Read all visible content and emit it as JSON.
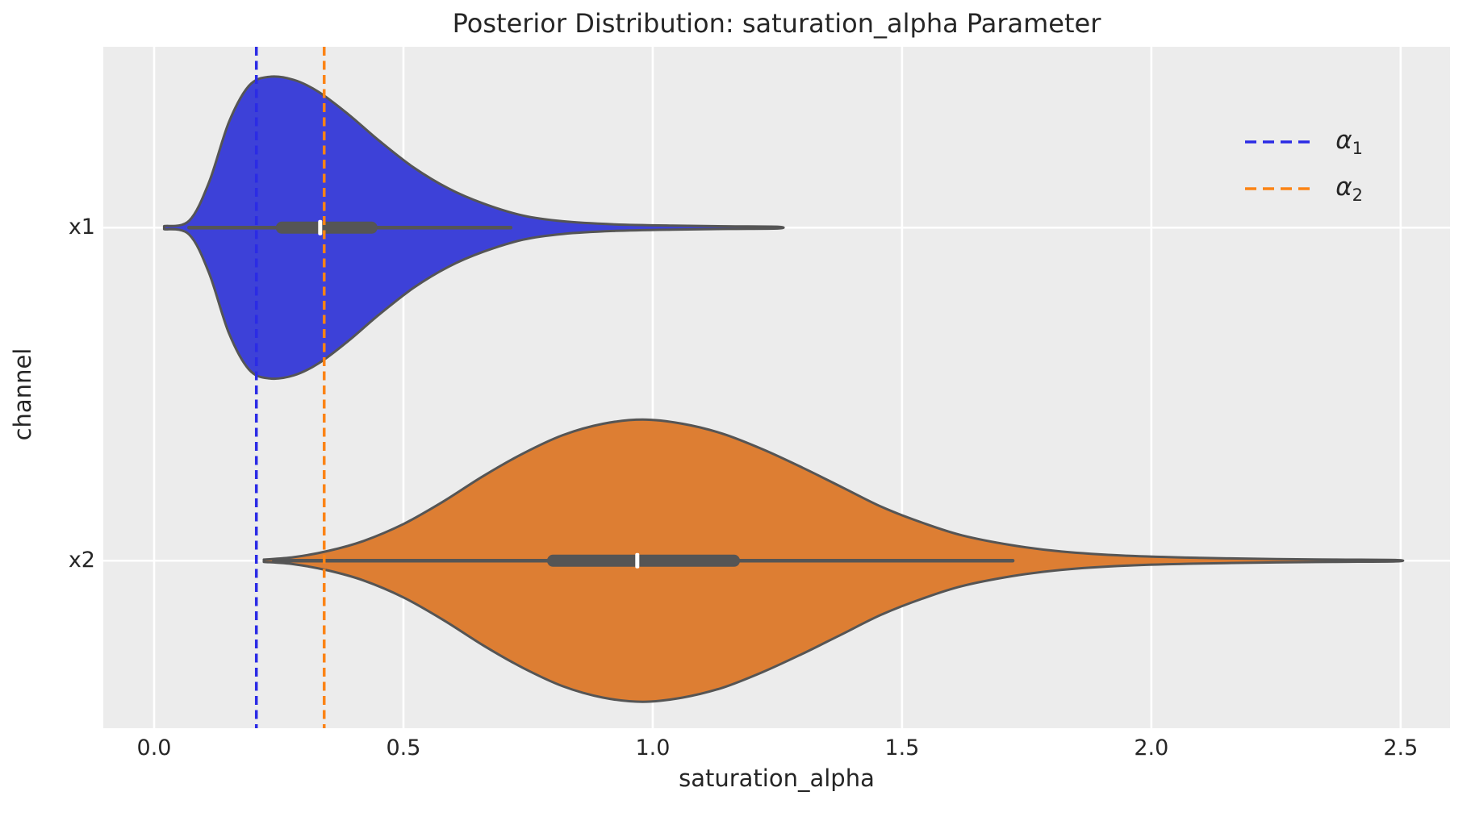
{
  "title": "Posterior Distribution: saturation_alpha Parameter",
  "colors": {
    "figure_bg": "#ffffff",
    "axes_bg": "#ececec",
    "grid": "#ffffff",
    "violin_edge": "#555555",
    "box": "#555555",
    "median_tick": "#ffffff",
    "text": "#262626",
    "violin1_fill": "#3d41d8",
    "violin2_fill": "#dd7e33",
    "alpha1_line": "#2b2be5",
    "alpha2_line": "#fb8315"
  },
  "legend": {
    "items": [
      {
        "name": "alpha_1",
        "base": "α",
        "sub": "1",
        "color": "#2b2be5"
      },
      {
        "name": "alpha_2",
        "base": "α",
        "sub": "2",
        "color": "#fb8315"
      }
    ]
  },
  "chart_data": {
    "type": "violin",
    "orientation": "horizontal",
    "title": "Posterior Distribution: saturation_alpha Parameter",
    "xlabel": "saturation_alpha",
    "ylabel": "channel",
    "x_axis": {
      "tick_values": [
        0.0,
        0.5,
        1.0,
        1.5,
        2.0,
        2.5
      ],
      "tick_labels": [
        "0.0",
        "0.5",
        "1.0",
        "1.5",
        "2.0",
        "2.5"
      ],
      "xlim": [
        -0.102,
        2.599
      ],
      "grid": true
    },
    "y_axis": {
      "categories": [
        "x1",
        "x2"
      ],
      "positions": [
        0,
        1
      ],
      "ylim": [
        -0.543,
        1.503
      ],
      "grid": true
    },
    "violins": [
      {
        "category": "x1",
        "fill": "#3d41d8",
        "max_halfwidth_units": 0.4527,
        "summary": {
          "median": 0.333,
          "q1": 0.244,
          "q3": 0.448,
          "whisker_low": 0.07,
          "whisker_high": 0.715,
          "min": 0.02,
          "max": 1.252
        },
        "density_profile": [
          [
            0.02,
            0.01
          ],
          [
            0.07,
            0.045
          ],
          [
            0.11,
            0.3
          ],
          [
            0.15,
            0.7
          ],
          [
            0.19,
            0.94
          ],
          [
            0.23,
            1.0
          ],
          [
            0.28,
            0.98
          ],
          [
            0.33,
            0.9
          ],
          [
            0.39,
            0.75
          ],
          [
            0.45,
            0.58
          ],
          [
            0.52,
            0.4
          ],
          [
            0.59,
            0.26
          ],
          [
            0.66,
            0.16
          ],
          [
            0.74,
            0.08
          ],
          [
            0.82,
            0.042
          ],
          [
            0.92,
            0.022
          ],
          [
            1.04,
            0.013
          ],
          [
            1.15,
            0.009
          ],
          [
            1.25,
            0.006
          ]
        ]
      },
      {
        "category": "x2",
        "fill": "#dd7e33",
        "max_halfwidth_units": 0.4237,
        "summary": {
          "median": 0.969,
          "q1": 0.788,
          "q3": 1.175,
          "whisker_low": 0.24,
          "whisker_high": 1.722,
          "min": 0.22,
          "max": 2.487
        },
        "density_profile": [
          [
            0.22,
            0.008
          ],
          [
            0.28,
            0.025
          ],
          [
            0.35,
            0.07
          ],
          [
            0.42,
            0.14
          ],
          [
            0.5,
            0.26
          ],
          [
            0.58,
            0.42
          ],
          [
            0.66,
            0.6
          ],
          [
            0.74,
            0.76
          ],
          [
            0.82,
            0.89
          ],
          [
            0.9,
            0.97
          ],
          [
            0.98,
            1.0
          ],
          [
            1.06,
            0.97
          ],
          [
            1.14,
            0.9
          ],
          [
            1.22,
            0.79
          ],
          [
            1.3,
            0.66
          ],
          [
            1.38,
            0.52
          ],
          [
            1.46,
            0.38
          ],
          [
            1.54,
            0.27
          ],
          [
            1.62,
            0.18
          ],
          [
            1.72,
            0.11
          ],
          [
            1.82,
            0.065
          ],
          [
            1.95,
            0.035
          ],
          [
            2.1,
            0.02
          ],
          [
            2.25,
            0.012
          ],
          [
            2.37,
            0.008
          ],
          [
            2.49,
            0.005
          ]
        ]
      }
    ],
    "reference_lines": [
      {
        "name": "alpha_1",
        "value": 0.205,
        "color": "#2b2be5"
      },
      {
        "name": "alpha_2",
        "value": 0.341,
        "color": "#fb8315"
      }
    ]
  }
}
